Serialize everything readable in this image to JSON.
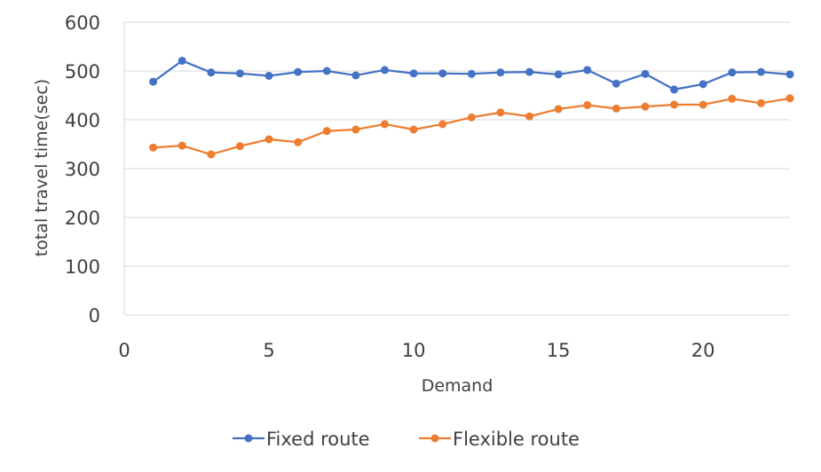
{
  "chart_data": {
    "type": "line",
    "title": "",
    "xlabel": "Demand",
    "ylabel": "total travel time(sec)",
    "xlim": [
      0,
      23
    ],
    "ylim": [
      0,
      600
    ],
    "xticks": [
      0,
      5,
      10,
      15,
      20
    ],
    "yticks": [
      0,
      100,
      200,
      300,
      400,
      500,
      600
    ],
    "grid": "horizontal",
    "legend_position": "bottom",
    "x": [
      1,
      2,
      3,
      4,
      5,
      6,
      7,
      8,
      9,
      10,
      11,
      12,
      13,
      14,
      15,
      16,
      17,
      18,
      19,
      20,
      21,
      22,
      23
    ],
    "series": [
      {
        "name": "Fixed route",
        "color": "#4472C4",
        "values": [
          478,
          521,
          497,
          495,
          490,
          498,
          500,
          491,
          502,
          495,
          495,
          494,
          497,
          498,
          493,
          502,
          474,
          494,
          462,
          473,
          497,
          498,
          493
        ]
      },
      {
        "name": "Flexible route",
        "color": "#ED7D31",
        "values": [
          343,
          347,
          329,
          346,
          360,
          354,
          377,
          380,
          391,
          380,
          391,
          405,
          415,
          407,
          422,
          430,
          423,
          427,
          431,
          431,
          443,
          434,
          444
        ]
      }
    ]
  }
}
